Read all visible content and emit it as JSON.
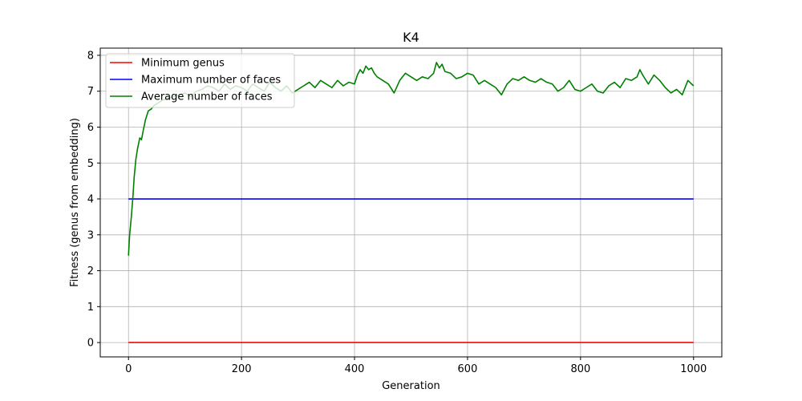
{
  "chart_data": {
    "type": "line",
    "title": "K4",
    "xlabel": "Generation",
    "ylabel": "Fitness (genus from embedding)",
    "xlim": [
      -50,
      1050
    ],
    "ylim": [
      -0.4,
      8.2
    ],
    "xticks": [
      0,
      200,
      400,
      600,
      800,
      1000
    ],
    "yticks": [
      0,
      1,
      2,
      3,
      4,
      5,
      6,
      7,
      8
    ],
    "grid": true,
    "legend_position": "upper-left",
    "series": [
      {
        "name": "Minimum genus",
        "color": "#ff0000",
        "x": [
          0,
          1000
        ],
        "y": [
          0,
          0
        ]
      },
      {
        "name": "Maximum number of faces",
        "color": "#0000ff",
        "x": [
          0,
          1000
        ],
        "y": [
          4,
          4
        ]
      },
      {
        "name": "Average number of faces",
        "color": "#008000",
        "x": [
          0,
          2,
          5,
          8,
          10,
          13,
          16,
          20,
          23,
          26,
          30,
          35,
          40,
          45,
          50,
          55,
          60,
          70,
          80,
          90,
          100,
          110,
          120,
          130,
          140,
          150,
          160,
          170,
          180,
          190,
          200,
          210,
          220,
          230,
          240,
          250,
          260,
          270,
          280,
          290,
          300,
          310,
          320,
          330,
          340,
          350,
          360,
          370,
          380,
          390,
          400,
          405,
          410,
          415,
          420,
          425,
          430,
          435,
          440,
          450,
          460,
          470,
          480,
          490,
          500,
          510,
          520,
          530,
          540,
          545,
          550,
          555,
          560,
          570,
          580,
          590,
          600,
          610,
          620,
          630,
          640,
          650,
          660,
          670,
          680,
          690,
          700,
          710,
          720,
          730,
          740,
          750,
          760,
          770,
          780,
          790,
          800,
          810,
          820,
          830,
          840,
          850,
          860,
          870,
          880,
          890,
          900,
          905,
          910,
          920,
          930,
          940,
          950,
          960,
          970,
          980,
          990,
          1000
        ],
        "y": [
          2.42,
          3.0,
          3.5,
          4.1,
          4.6,
          5.1,
          5.4,
          5.7,
          5.65,
          5.9,
          6.2,
          6.45,
          6.5,
          6.6,
          6.65,
          6.7,
          6.75,
          6.8,
          6.85,
          6.9,
          6.95,
          6.85,
          7.0,
          7.05,
          7.15,
          7.1,
          7.0,
          7.2,
          7.05,
          7.15,
          7.1,
          7.0,
          7.2,
          7.1,
          7.0,
          7.25,
          7.1,
          7.0,
          7.15,
          6.95,
          7.05,
          7.15,
          7.25,
          7.1,
          7.3,
          7.2,
          7.1,
          7.3,
          7.15,
          7.25,
          7.2,
          7.45,
          7.6,
          7.5,
          7.7,
          7.6,
          7.65,
          7.5,
          7.4,
          7.3,
          7.2,
          6.95,
          7.3,
          7.5,
          7.4,
          7.3,
          7.4,
          7.35,
          7.5,
          7.8,
          7.65,
          7.75,
          7.55,
          7.5,
          7.35,
          7.4,
          7.5,
          7.45,
          7.2,
          7.3,
          7.2,
          7.1,
          6.9,
          7.2,
          7.35,
          7.3,
          7.4,
          7.3,
          7.25,
          7.35,
          7.25,
          7.2,
          7.0,
          7.1,
          7.3,
          7.05,
          7.0,
          7.1,
          7.2,
          7.0,
          6.95,
          7.15,
          7.25,
          7.1,
          7.35,
          7.3,
          7.4,
          7.6,
          7.45,
          7.2,
          7.45,
          7.3,
          7.1,
          6.95,
          7.05,
          6.9,
          7.3,
          7.15
        ]
      }
    ]
  }
}
